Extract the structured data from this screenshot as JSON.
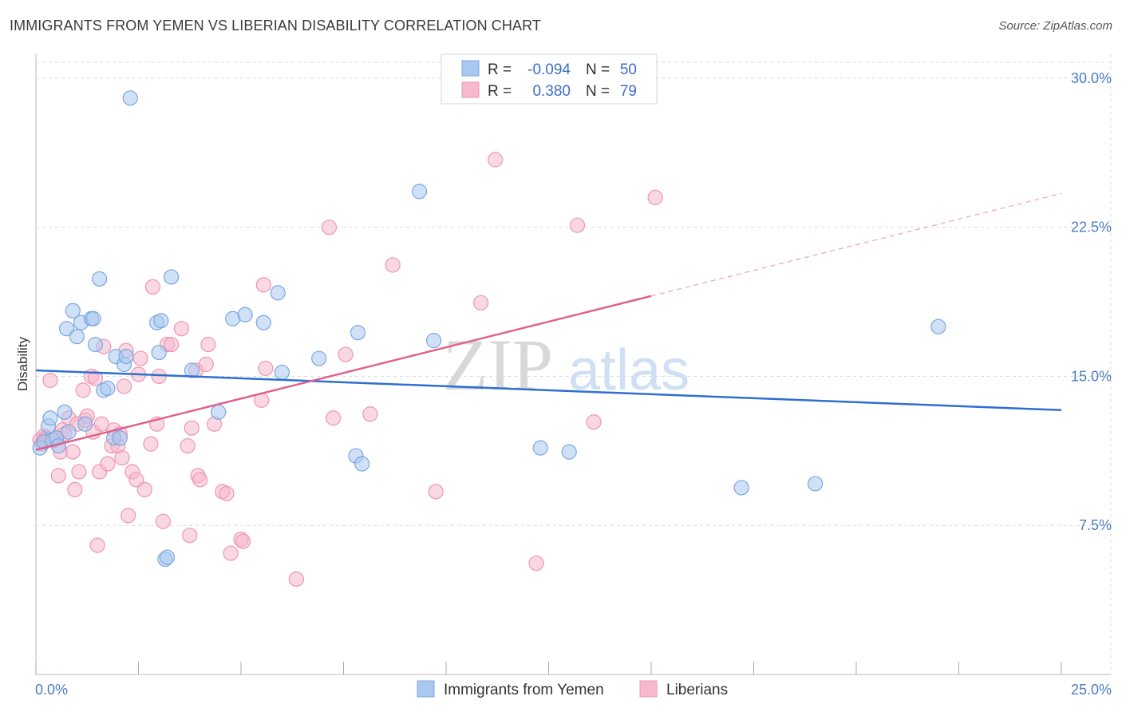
{
  "title": "IMMIGRANTS FROM YEMEN VS LIBERIAN DISABILITY CORRELATION CHART",
  "source": "Source: ZipAtlas.com",
  "watermark": {
    "zip": "ZIP",
    "atlas": "atlas"
  },
  "legend": {
    "rows": [
      {
        "r_label": "R =",
        "r_value": "-0.094",
        "n_label": "N =",
        "n_value": "50"
      },
      {
        "r_label": "R =",
        "r_value": "0.380",
        "n_label": "N =",
        "n_value": "79"
      }
    ]
  },
  "colors": {
    "blue_fill": "#a9c8f0",
    "blue_stroke": "#7aa7e0",
    "blue_line": "#2f6fd0",
    "pink_fill": "#f6b8cc",
    "pink_stroke": "#ee95b2",
    "pink_line": "#e0608d",
    "grid": "#dcdcdc",
    "axis_text": "#4a7cc9"
  },
  "chart_data": {
    "type": "scatter",
    "title": "IMMIGRANTS FROM YEMEN VS LIBERIAN DISABILITY CORRELATION CHART",
    "xlabel": "",
    "ylabel": "Disability",
    "xlim": [
      0,
      25
    ],
    "ylim": [
      0,
      30.8
    ],
    "x_tick_labels": [
      "0.0%",
      "25.0%"
    ],
    "y_ticks": [
      7.5,
      15.0,
      22.5,
      30.0
    ],
    "y_tick_labels": [
      "7.5%",
      "15.0%",
      "22.5%",
      "30.0%"
    ],
    "series": [
      {
        "name": "Immigrants from Yemen",
        "color": "blue",
        "r": -0.094,
        "n": 50,
        "trend": {
          "x0": 0,
          "y0": 15.3,
          "x1": 25,
          "y1": 13.3,
          "dashed_from": null
        },
        "points": [
          [
            0.1,
            11.4
          ],
          [
            0.2,
            11.7
          ],
          [
            0.3,
            12.5
          ],
          [
            0.35,
            12.9
          ],
          [
            0.4,
            11.8
          ],
          [
            0.5,
            11.9
          ],
          [
            0.55,
            11.5
          ],
          [
            0.7,
            13.2
          ],
          [
            0.75,
            17.4
          ],
          [
            0.8,
            12.2
          ],
          [
            0.9,
            18.3
          ],
          [
            1.0,
            17.0
          ],
          [
            1.1,
            17.7
          ],
          [
            1.2,
            12.6
          ],
          [
            1.35,
            17.9
          ],
          [
            1.4,
            17.9
          ],
          [
            1.45,
            16.6
          ],
          [
            1.55,
            19.9
          ],
          [
            1.65,
            14.3
          ],
          [
            1.75,
            14.4
          ],
          [
            1.9,
            11.9
          ],
          [
            1.95,
            16.0
          ],
          [
            2.05,
            11.9
          ],
          [
            2.15,
            15.6
          ],
          [
            2.2,
            16.0
          ],
          [
            2.3,
            29.0
          ],
          [
            2.95,
            17.7
          ],
          [
            3.0,
            16.2
          ],
          [
            3.05,
            17.8
          ],
          [
            3.15,
            5.8
          ],
          [
            3.2,
            5.9
          ],
          [
            3.3,
            20.0
          ],
          [
            3.8,
            15.3
          ],
          [
            4.45,
            13.2
          ],
          [
            4.8,
            17.9
          ],
          [
            5.1,
            18.1
          ],
          [
            5.55,
            17.7
          ],
          [
            5.9,
            19.2
          ],
          [
            6.0,
            15.2
          ],
          [
            6.9,
            15.9
          ],
          [
            7.8,
            11.0
          ],
          [
            7.85,
            17.2
          ],
          [
            7.95,
            10.6
          ],
          [
            9.35,
            24.3
          ],
          [
            9.7,
            16.8
          ],
          [
            12.3,
            11.4
          ],
          [
            13.0,
            11.2
          ],
          [
            17.2,
            9.4
          ],
          [
            19.0,
            9.6
          ],
          [
            22.0,
            17.5
          ]
        ]
      },
      {
        "name": "Liberians",
        "color": "pink",
        "r": 0.38,
        "n": 79,
        "trend": {
          "x0": 0,
          "y0": 11.3,
          "x1": 25,
          "y1": 24.2,
          "dashed_from": 15.0
        },
        "points": [
          [
            0.1,
            11.8
          ],
          [
            0.15,
            11.6
          ],
          [
            0.2,
            12.0
          ],
          [
            0.25,
            11.9
          ],
          [
            0.3,
            11.8
          ],
          [
            0.35,
            14.8
          ],
          [
            0.45,
            11.8
          ],
          [
            0.5,
            11.9
          ],
          [
            0.55,
            10.0
          ],
          [
            0.6,
            11.2
          ],
          [
            0.65,
            12.3
          ],
          [
            0.7,
            12.1
          ],
          [
            0.8,
            12.9
          ],
          [
            0.9,
            11.2
          ],
          [
            0.95,
            9.3
          ],
          [
            1.0,
            12.6
          ],
          [
            1.05,
            10.2
          ],
          [
            1.15,
            14.3
          ],
          [
            1.2,
            12.8
          ],
          [
            1.25,
            13.0
          ],
          [
            1.35,
            15.0
          ],
          [
            1.4,
            12.2
          ],
          [
            1.45,
            14.9
          ],
          [
            1.5,
            6.5
          ],
          [
            1.55,
            10.2
          ],
          [
            1.6,
            12.6
          ],
          [
            1.65,
            16.5
          ],
          [
            1.75,
            10.6
          ],
          [
            1.85,
            11.5
          ],
          [
            1.9,
            12.3
          ],
          [
            2.0,
            11.5
          ],
          [
            2.05,
            12.1
          ],
          [
            2.1,
            10.9
          ],
          [
            2.15,
            14.5
          ],
          [
            2.2,
            16.3
          ],
          [
            2.25,
            8.0
          ],
          [
            2.35,
            10.2
          ],
          [
            2.45,
            9.8
          ],
          [
            2.5,
            15.1
          ],
          [
            2.55,
            15.9
          ],
          [
            2.65,
            9.3
          ],
          [
            2.8,
            11.6
          ],
          [
            2.85,
            19.5
          ],
          [
            2.95,
            12.6
          ],
          [
            3.0,
            15.0
          ],
          [
            3.1,
            7.7
          ],
          [
            3.2,
            16.6
          ],
          [
            3.3,
            16.6
          ],
          [
            3.55,
            17.4
          ],
          [
            3.7,
            11.5
          ],
          [
            3.75,
            7.0
          ],
          [
            3.8,
            12.4
          ],
          [
            3.9,
            15.3
          ],
          [
            3.95,
            10.0
          ],
          [
            4.0,
            9.8
          ],
          [
            4.15,
            15.6
          ],
          [
            4.2,
            16.6
          ],
          [
            4.35,
            12.6
          ],
          [
            4.55,
            9.2
          ],
          [
            4.65,
            9.1
          ],
          [
            4.75,
            6.1
          ],
          [
            5.0,
            6.8
          ],
          [
            5.05,
            6.7
          ],
          [
            5.5,
            13.8
          ],
          [
            5.55,
            19.6
          ],
          [
            5.6,
            15.4
          ],
          [
            6.35,
            4.8
          ],
          [
            7.15,
            22.5
          ],
          [
            7.25,
            12.9
          ],
          [
            7.55,
            16.1
          ],
          [
            8.15,
            13.1
          ],
          [
            8.7,
            20.6
          ],
          [
            9.75,
            9.2
          ],
          [
            10.85,
            18.7
          ],
          [
            11.2,
            25.9
          ],
          [
            12.2,
            5.6
          ],
          [
            13.2,
            22.6
          ],
          [
            13.6,
            12.7
          ],
          [
            15.1,
            24.0
          ]
        ]
      }
    ],
    "legend_position": "top-center"
  }
}
